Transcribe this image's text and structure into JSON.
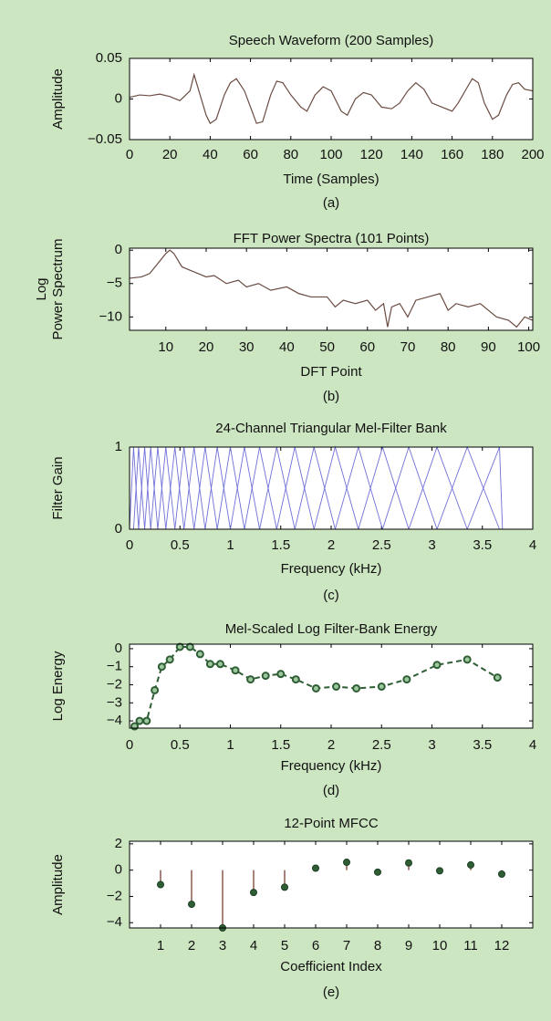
{
  "chart_data": [
    {
      "type": "line",
      "title": "Speech Waveform (200 Samples)",
      "caption": "(a)",
      "xlabel": "Time (Samples)",
      "ylabel": "Amplitude",
      "color": "#6b4c43",
      "x": [
        0,
        5,
        10,
        15,
        20,
        25,
        30,
        32,
        35,
        38,
        40,
        43,
        47,
        50,
        53,
        57,
        60,
        63,
        66,
        70,
        73,
        76,
        80,
        85,
        88,
        92,
        96,
        100,
        105,
        108,
        112,
        116,
        120,
        125,
        130,
        134,
        138,
        142,
        146,
        150,
        155,
        160,
        163,
        166,
        170,
        173,
        176,
        180,
        183,
        187,
        190,
        193,
        196,
        200
      ],
      "values": [
        0.002,
        0.005,
        0.004,
        0.006,
        0.003,
        -0.002,
        0.01,
        0.03,
        0.005,
        -0.02,
        -0.03,
        -0.025,
        0.005,
        0.02,
        0.025,
        0.01,
        -0.01,
        -0.03,
        -0.028,
        0.005,
        0.022,
        0.02,
        0.005,
        -0.01,
        -0.015,
        0.005,
        0.015,
        0.01,
        -0.015,
        -0.02,
        0,
        0.008,
        0.005,
        -0.01,
        -0.012,
        -0.005,
        0.01,
        0.02,
        0.012,
        -0.005,
        -0.01,
        -0.015,
        -0.005,
        0.008,
        0.025,
        0.02,
        -0.005,
        -0.025,
        -0.02,
        0.005,
        0.018,
        0.02,
        0.012,
        0.01
      ],
      "xlim": [
        0,
        200
      ],
      "xticks": [
        0,
        20,
        40,
        60,
        80,
        100,
        120,
        140,
        160,
        180,
        200
      ],
      "ylim": [
        -0.05,
        0.05
      ],
      "yticks": [
        0.05,
        0,
        {
          "value": -0.05,
          "label": "−0.05"
        }
      ]
    },
    {
      "type": "line",
      "title": "FFT Power Spectra (101 Points)",
      "caption": "(b)",
      "xlabel": "DFT Point",
      "ylabel": [
        "Log",
        "Power Spectrum"
      ],
      "color": "#6b4c43",
      "x": [
        1,
        4,
        6,
        8,
        10,
        11,
        12,
        14,
        16,
        18,
        20,
        22,
        25,
        28,
        30,
        33,
        36,
        40,
        43,
        46,
        50,
        52,
        54,
        57,
        60,
        62,
        64,
        65,
        66,
        68,
        70,
        72,
        75,
        78,
        80,
        82,
        85,
        88,
        90,
        92,
        95,
        97,
        99,
        101
      ],
      "values": [
        -4.2,
        -4,
        -3.5,
        -2,
        -0.5,
        0,
        -0.5,
        -2.5,
        -3,
        -3.5,
        -4,
        -3.8,
        -5,
        -4.5,
        -5.5,
        -5,
        -6,
        -5.5,
        -6.5,
        -7,
        -7,
        -8.5,
        -7.5,
        -8,
        -7.5,
        -9,
        -8,
        -11.5,
        -8.5,
        -8,
        -10,
        -7.5,
        -7,
        -6.5,
        -9,
        -8,
        -8.5,
        -8,
        -9,
        -10,
        -10.5,
        -11.5,
        -10,
        -10.5
      ],
      "xlim": [
        1,
        101
      ],
      "xticks": [
        10,
        20,
        30,
        40,
        50,
        60,
        70,
        80,
        90,
        100
      ],
      "ylim": [
        -12,
        0.3
      ],
      "yticks": [
        0,
        {
          "value": -5,
          "label": "−5"
        },
        {
          "value": -10,
          "label": "−10"
        }
      ]
    },
    {
      "type": "triangles",
      "title": "24-Channel Triangular Mel-Filter Bank",
      "caption": "(c)",
      "xlabel": "Frequency (kHz)",
      "ylabel": "Filter Gain",
      "color": "#6f6fd8",
      "filter_edges": [
        0,
        0.04,
        0.09,
        0.15,
        0.21,
        0.28,
        0.36,
        0.45,
        0.54,
        0.64,
        0.75,
        0.87,
        1.0,
        1.14,
        1.29,
        1.46,
        1.64,
        1.83,
        2.04,
        2.27,
        2.51,
        2.77,
        3.05,
        3.35,
        3.67,
        3.7
      ],
      "xlim": [
        0,
        4
      ],
      "xticks": [
        0,
        0.5,
        1,
        1.5,
        2,
        2.5,
        3,
        3.5,
        4
      ],
      "ylim": [
        0,
        1
      ],
      "yticks": [
        1,
        0
      ]
    },
    {
      "type": "line",
      "title": "Mel-Scaled Log Filter-Bank Energy",
      "caption": "(d)",
      "xlabel": "Frequency (kHz)",
      "ylabel": "Log Energy",
      "color": "#2f5e35",
      "line_style": "dashed",
      "markers": true,
      "x": [
        0.05,
        0.1,
        0.17,
        0.25,
        0.32,
        0.4,
        0.5,
        0.6,
        0.7,
        0.8,
        0.9,
        1.05,
        1.2,
        1.35,
        1.5,
        1.65,
        1.85,
        2.05,
        2.25,
        2.5,
        2.75,
        3.05,
        3.35,
        3.65
      ],
      "values": [
        -4.3,
        -4,
        -4,
        -2.3,
        -1,
        -0.6,
        0.1,
        0.1,
        -0.3,
        -0.85,
        -0.85,
        -1.2,
        -1.7,
        -1.5,
        -1.4,
        -1.7,
        -2.2,
        -2.1,
        -2.2,
        -2.1,
        -1.7,
        -0.9,
        -0.6,
        -1.6
      ],
      "xlim": [
        0,
        4
      ],
      "xticks": [
        0,
        0.5,
        1,
        1.5,
        2,
        2.5,
        3,
        3.5,
        4
      ],
      "ylim": [
        -4.4,
        0.25
      ],
      "yticks": [
        0,
        {
          "value": -1,
          "label": "−1"
        },
        {
          "value": -2,
          "label": "−2"
        },
        {
          "value": -3,
          "label": "−3"
        },
        {
          "value": -4,
          "label": "−4"
        }
      ]
    },
    {
      "type": "stem",
      "title": "12-Point MFCC",
      "caption": "(e)",
      "xlabel": "Coefficient Index",
      "ylabel": "Amplitude",
      "color": "#8b5a4a",
      "marker_color": "#2f5e35",
      "x": [
        1,
        2,
        3,
        4,
        5,
        6,
        7,
        8,
        9,
        10,
        11,
        12
      ],
      "values": [
        -1.1,
        -2.6,
        -4.4,
        -1.7,
        -1.3,
        0.15,
        0.6,
        -0.15,
        0.55,
        -0.05,
        0.4,
        -0.3
      ],
      "xlim": [
        0,
        13
      ],
      "xticks": [
        1,
        2,
        3,
        4,
        5,
        6,
        7,
        8,
        9,
        10,
        11,
        12
      ],
      "ylim": [
        -4.4,
        2.2
      ],
      "yticks": [
        2,
        0,
        {
          "value": -2,
          "label": "−2"
        },
        {
          "value": -4,
          "label": "−4"
        }
      ]
    }
  ]
}
